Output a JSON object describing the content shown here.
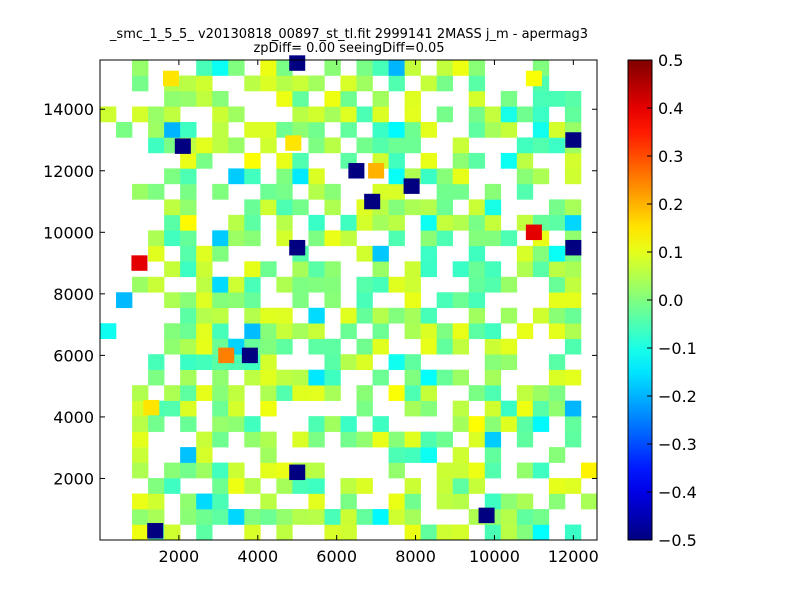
{
  "chart_data": {
    "type": "heatmap",
    "title_line1": "_smc_1_5_5_ v20130818_00897_st_tl.fit 2999141 2MASS j_m - apermag3",
    "title_line2": "zpDiff= 0.00 seeingDiff=0.05",
    "xlim": [
      0,
      12600
    ],
    "ylim": [
      0,
      15600
    ],
    "xticks": [
      2000,
      4000,
      6000,
      8000,
      10000,
      12000
    ],
    "yticks": [
      2000,
      4000,
      6000,
      8000,
      10000,
      12000,
      14000
    ],
    "colorbar": {
      "vmin": -0.5,
      "vmax": 0.5,
      "ticks": [
        "0.5",
        "0.4",
        "0.3",
        "0.2",
        "0.1",
        "0.0",
        "−0.1",
        "−0.2",
        "−0.3",
        "−0.4",
        "−0.5"
      ],
      "tick_values": [
        0.5,
        0.4,
        0.3,
        0.2,
        0.1,
        0.0,
        -0.1,
        -0.2,
        -0.3,
        -0.4,
        -0.5
      ],
      "colormap": "jet"
    },
    "grid": {
      "cols": 31,
      "rows": 31,
      "x0": 0,
      "y0": 0,
      "cell_width": 406.45,
      "cell_height": 503.2
    },
    "notable_cells": [
      {
        "x": 5000,
        "y": 15500,
        "value": -0.5
      },
      {
        "x": 11000,
        "y": 15000,
        "value": 0.12
      },
      {
        "x": 1800,
        "y": 15000,
        "value": 0.15
      },
      {
        "x": 12000,
        "y": 13000,
        "value": -0.5
      },
      {
        "x": 2100,
        "y": 12800,
        "value": -0.5
      },
      {
        "x": 4900,
        "y": 12900,
        "value": 0.15
      },
      {
        "x": 7000,
        "y": 12000,
        "value": 0.2
      },
      {
        "x": 6500,
        "y": 12000,
        "value": -0.5
      },
      {
        "x": 7900,
        "y": 11500,
        "value": -0.5
      },
      {
        "x": 6900,
        "y": 11000,
        "value": -0.5
      },
      {
        "x": 11000,
        "y": 10000,
        "value": 0.4
      },
      {
        "x": 12000,
        "y": 9500,
        "value": -0.5
      },
      {
        "x": 5000,
        "y": 9500,
        "value": -0.5
      },
      {
        "x": 1000,
        "y": 9000,
        "value": 0.4
      },
      {
        "x": 3200,
        "y": 6000,
        "value": 0.25
      },
      {
        "x": 3800,
        "y": 6000,
        "value": -0.5
      },
      {
        "x": 1300,
        "y": 4300,
        "value": 0.15
      },
      {
        "x": 5000,
        "y": 2200,
        "value": -0.5
      },
      {
        "x": 9800,
        "y": 800,
        "value": -0.5
      },
      {
        "x": 1400,
        "y": 300,
        "value": -0.5
      }
    ]
  }
}
